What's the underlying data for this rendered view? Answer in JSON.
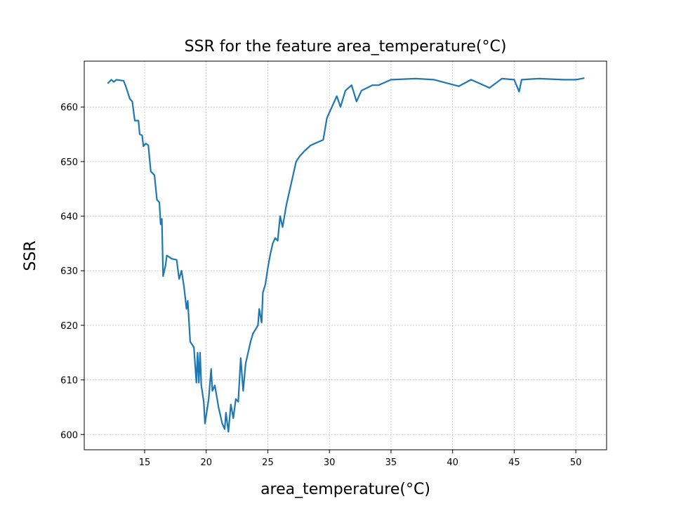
{
  "chart_data": {
    "type": "line",
    "title": "SSR for the feature area_temperature(°C)",
    "xlabel": "area_temperature(°C)",
    "ylabel": "SSR",
    "x": [
      12.0,
      12.3,
      12.5,
      12.7,
      13.0,
      13.3,
      13.5,
      13.8,
      14.0,
      14.1,
      14.2,
      14.5,
      14.6,
      14.8,
      14.9,
      15.1,
      15.3,
      15.5,
      15.8,
      16.0,
      16.2,
      16.3,
      16.4,
      16.5,
      16.7,
      16.8,
      17.2,
      17.6,
      17.8,
      18.0,
      18.2,
      18.4,
      18.5,
      18.7,
      19.0,
      19.2,
      19.3,
      19.4,
      19.5,
      19.6,
      19.8,
      19.9,
      20.0,
      20.2,
      20.4,
      20.5,
      20.7,
      21.0,
      21.3,
      21.5,
      21.6,
      21.8,
      22.0,
      22.2,
      22.4,
      22.6,
      22.8,
      23.0,
      23.2,
      23.6,
      23.8,
      24.2,
      24.3,
      24.5,
      24.6,
      24.8,
      25.0,
      25.2,
      25.4,
      25.6,
      25.8,
      26.0,
      26.2,
      26.5,
      26.8,
      27.0,
      27.3,
      27.6,
      28.0,
      28.5,
      29.0,
      29.5,
      29.8,
      30.2,
      30.6,
      30.9,
      31.3,
      31.8,
      32.2,
      32.6,
      33.5,
      34.0,
      34.5,
      35.0,
      37.0,
      38.5,
      40.5,
      41.5,
      42.5,
      43.0,
      44.0,
      45.0,
      45.4,
      45.6,
      47.0,
      49.0,
      50.0,
      50.7
    ],
    "series": [
      {
        "name": "SSR",
        "color": "#1f77b4",
        "values": [
          664.3,
          665.0,
          664.6,
          665.0,
          664.9,
          664.8,
          663.6,
          661.5,
          661.0,
          659.3,
          657.5,
          657.5,
          655.0,
          654.8,
          652.8,
          653.3,
          653.0,
          648.2,
          647.5,
          643.0,
          642.5,
          638.5,
          639.5,
          629.0,
          631.0,
          632.8,
          632.2,
          632.0,
          628.5,
          630.0,
          627.0,
          623.0,
          624.5,
          617.0,
          616.0,
          609.5,
          615.0,
          609.5,
          615.0,
          609.0,
          606.0,
          602.0,
          603.5,
          606.5,
          612.0,
          608.0,
          609.0,
          605.0,
          602.0,
          601.0,
          604.0,
          600.5,
          605.5,
          603.0,
          606.5,
          606.0,
          614.0,
          608.0,
          613.0,
          617.0,
          618.5,
          620.0,
          623.0,
          620.5,
          626.0,
          627.5,
          630.5,
          633.0,
          635.0,
          636.0,
          635.5,
          640.0,
          638.0,
          642.0,
          645.0,
          647.0,
          650.0,
          651.0,
          652.0,
          653.0,
          653.5,
          654.0,
          658.0,
          660.0,
          662.0,
          660.0,
          663.0,
          664.0,
          661.0,
          663.0,
          664.0,
          664.0,
          664.5,
          665.0,
          665.2,
          665.0,
          663.8,
          665.0,
          664.0,
          663.5,
          665.2,
          665.0,
          662.8,
          665.0,
          665.2,
          665.0,
          665.0,
          665.3
        ]
      }
    ],
    "xlim": [
      10.1,
      52.5
    ],
    "ylim": [
      597.2,
      668.4
    ],
    "xticks": [
      15,
      20,
      25,
      30,
      35,
      40,
      45,
      50
    ],
    "yticks": [
      600,
      610,
      620,
      630,
      640,
      650,
      660
    ],
    "grid": true
  }
}
